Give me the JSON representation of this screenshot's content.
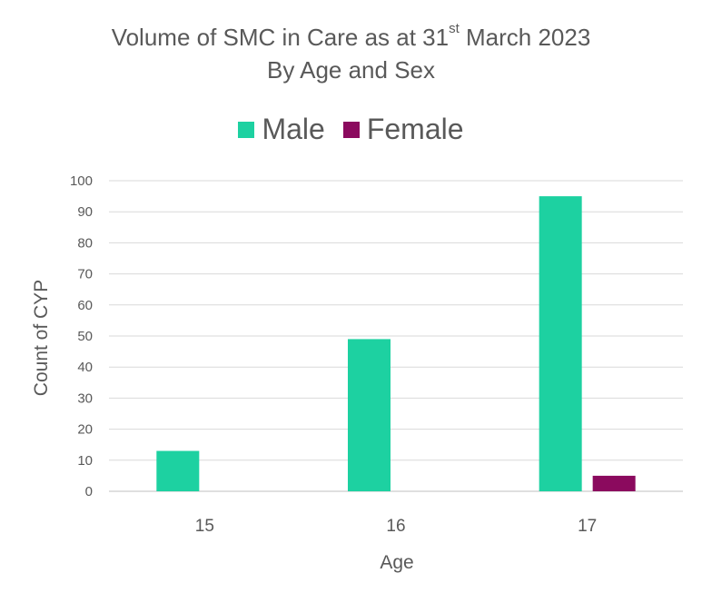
{
  "chart_data": {
    "type": "bar",
    "title_prefix": "Volume of SMC in Care as at 31",
    "title_sup": "st",
    "title_suffix": " March 2023",
    "subtitle": "By Age and Sex",
    "xlabel": "Age",
    "ylabel": "Count of CYP",
    "categories": [
      "15",
      "16",
      "17"
    ],
    "series": [
      {
        "name": "Male",
        "color": "#1dd1a1",
        "values": [
          13,
          49,
          95
        ]
      },
      {
        "name": "Female",
        "color": "#8b0a5e",
        "values": [
          0,
          0,
          5
        ]
      }
    ],
    "ylim": [
      0,
      100
    ],
    "yticks": [
      0,
      10,
      20,
      30,
      40,
      50,
      60,
      70,
      80,
      90,
      100
    ],
    "grid": true,
    "legend_position": "top"
  }
}
